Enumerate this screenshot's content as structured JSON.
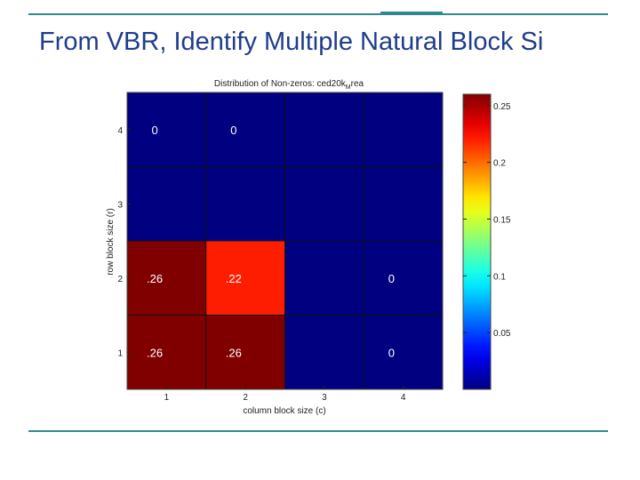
{
  "slide": {
    "title": "From VBR, Identify Multiple Natural Block Si"
  },
  "chart_data": {
    "type": "heatmap",
    "title": "Distribution of Non-zeros: ced20k",
    "title_subscript": "M",
    "title_suffix": "rea",
    "xlabel": "column block size (c)",
    "ylabel": "row block size (r)",
    "x_tick_labels": [
      "1",
      "2",
      "3",
      "4"
    ],
    "y_tick_labels": [
      "1",
      "2",
      "3",
      "4"
    ],
    "grid": true,
    "colormap": "jet",
    "colorbar": {
      "range": [
        0,
        0.26
      ],
      "ticks": [
        0.05,
        0.1,
        0.15,
        0.2,
        0.25
      ],
      "tick_labels": [
        "0.05",
        "0.1",
        "0.15",
        "0.2",
        "0.25"
      ]
    },
    "cells": [
      {
        "r": 1,
        "c": 1,
        "value": 0.26,
        "label": ".26"
      },
      {
        "r": 1,
        "c": 2,
        "value": 0.26,
        "label": ".26"
      },
      {
        "r": 1,
        "c": 4,
        "value": 0,
        "label": "0"
      },
      {
        "r": 2,
        "c": 1,
        "value": 0.26,
        "label": ".26"
      },
      {
        "r": 2,
        "c": 2,
        "value": 0.22,
        "label": ".22"
      },
      {
        "r": 2,
        "c": 4,
        "value": 0,
        "label": "0"
      },
      {
        "r": 4,
        "c": 1,
        "value": 0,
        "label": "0"
      },
      {
        "r": 4,
        "c": 2,
        "value": 0,
        "label": "0"
      }
    ]
  }
}
